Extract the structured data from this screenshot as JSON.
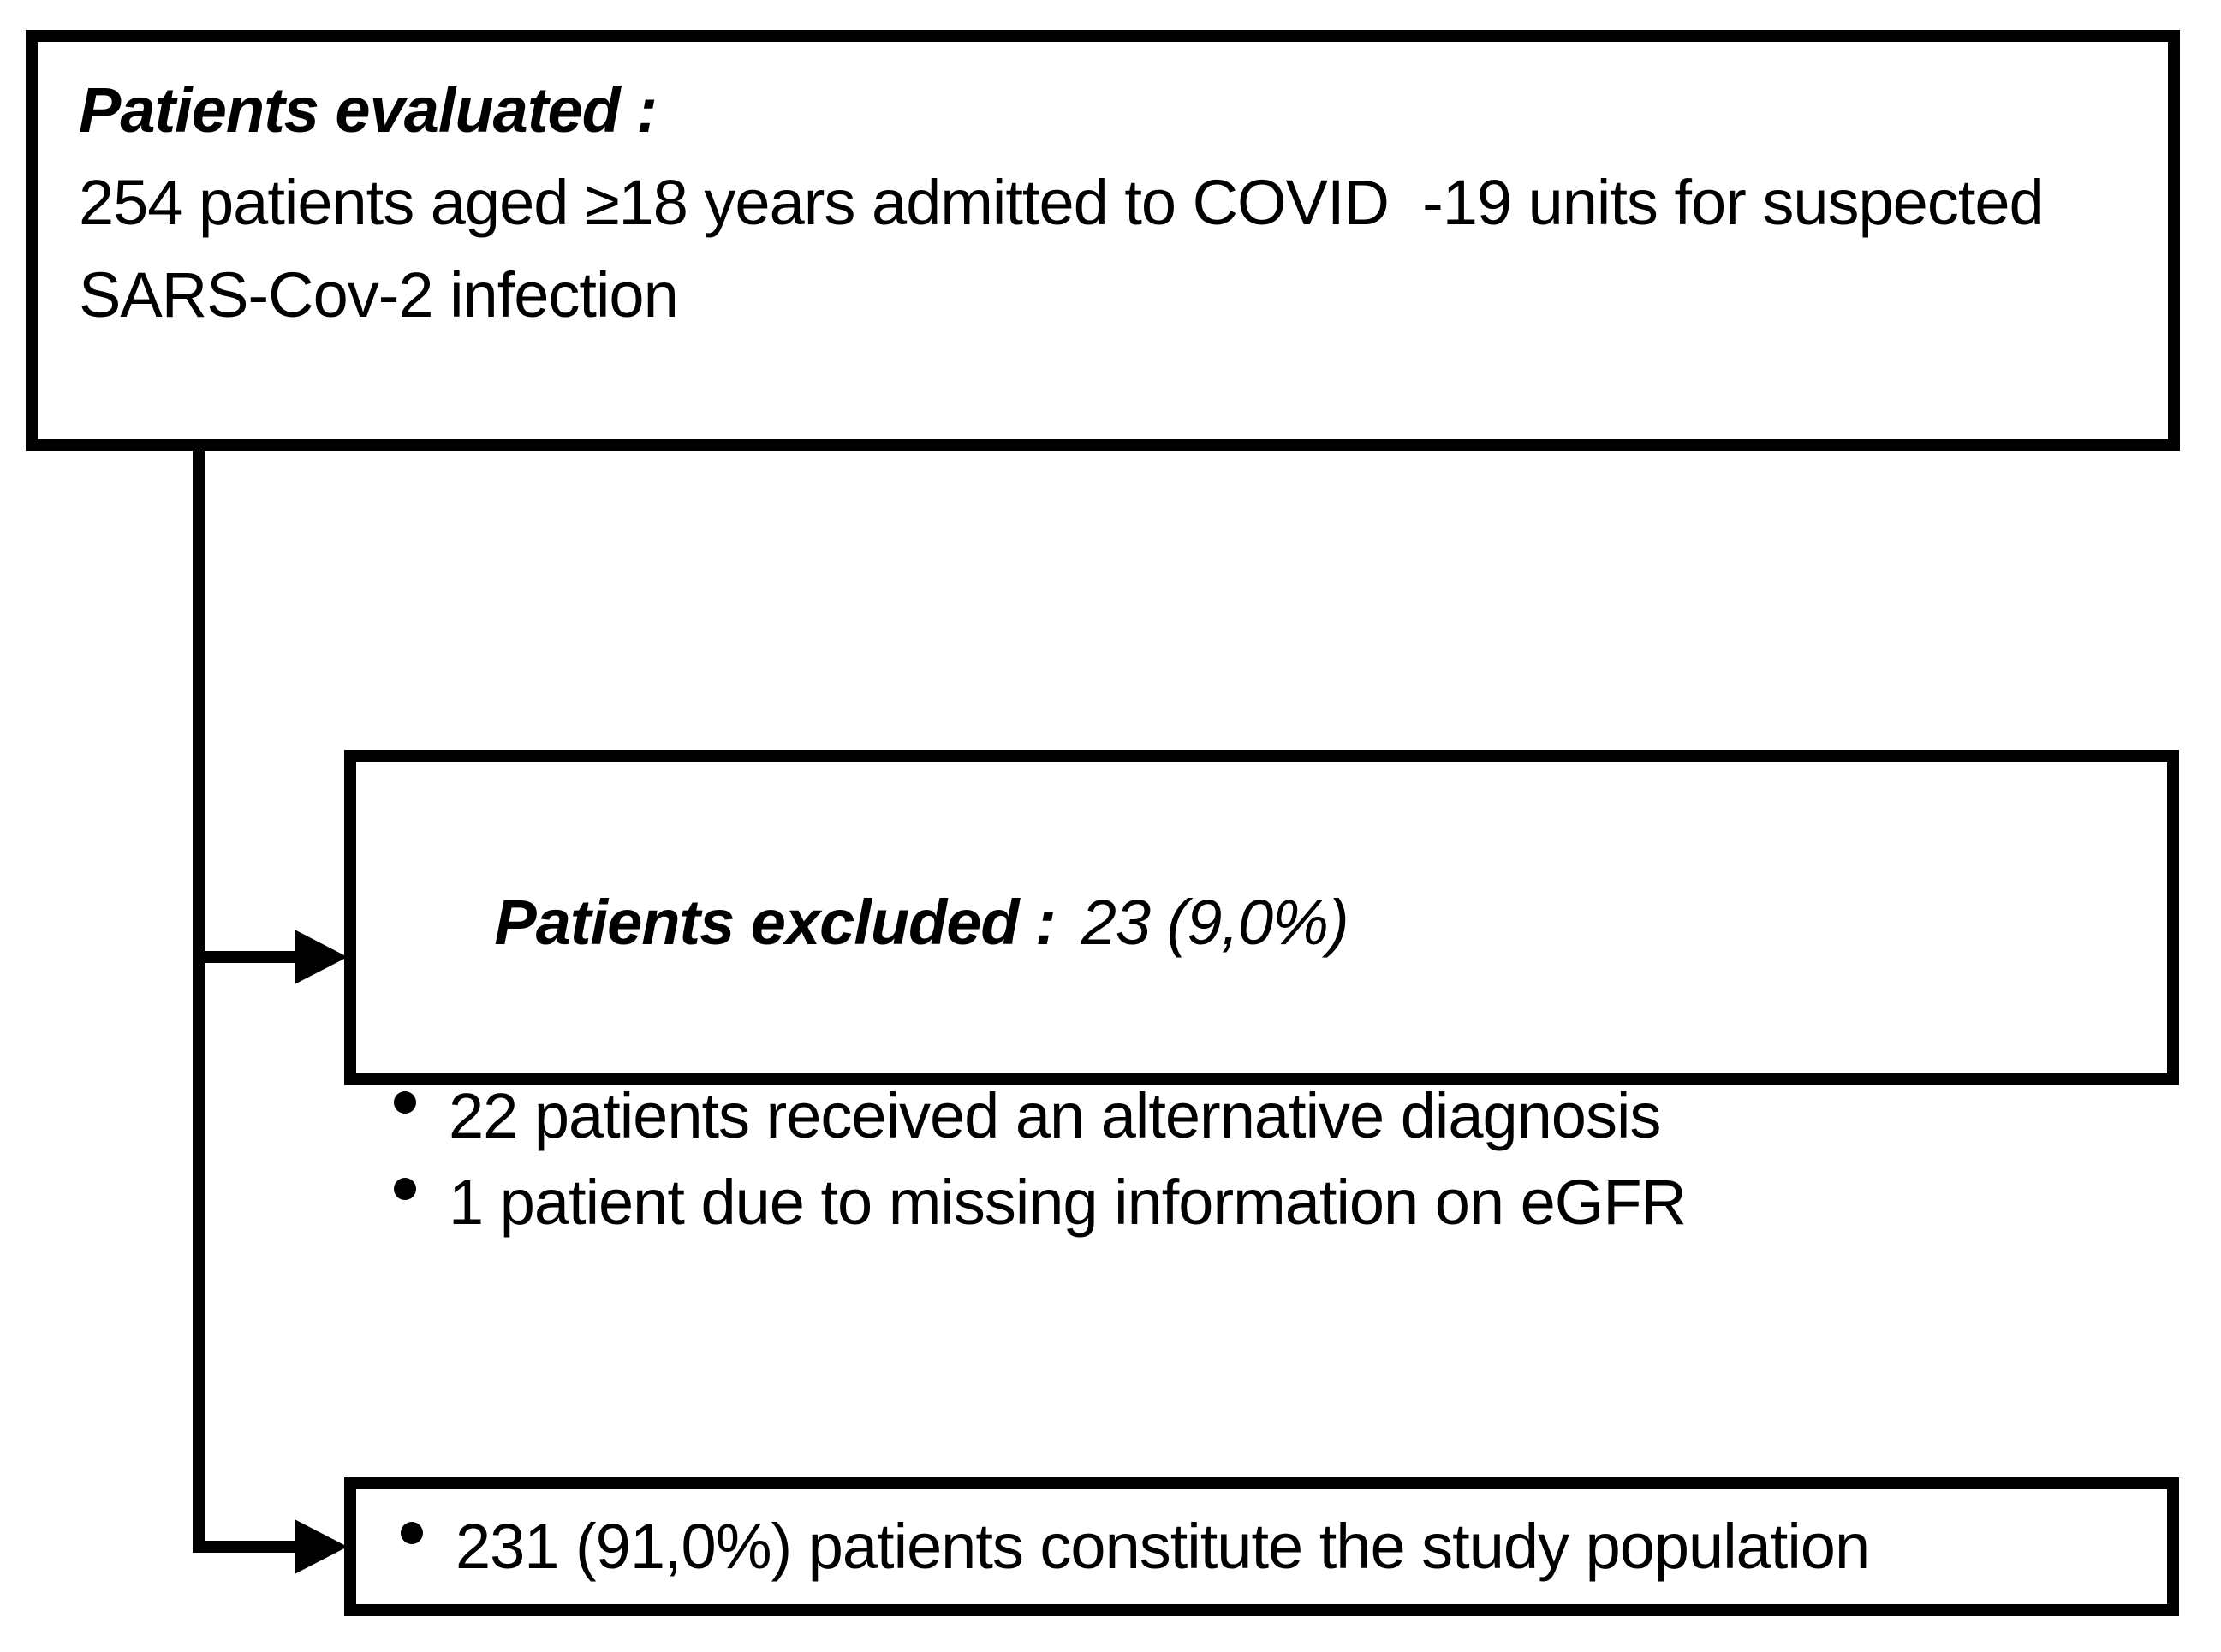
{
  "evaluated_box": {
    "title": "Patients evaluated :",
    "line1": "254 patients aged ≥18 years admitted to COVID  -19 units for suspected",
    "line2": "SARS-Cov-2 infection"
  },
  "excluded_box": {
    "title": "Patients excluded :",
    "count": "23 (9,0%)",
    "bullets": [
      "22 patients received an alternative diagnosis",
      "1 patient due to missing information on eGFR"
    ]
  },
  "study_box": {
    "bullet": "231 (91,0%) patients constitute the study population"
  },
  "colors": {
    "border": "#000000",
    "text": "#000000",
    "background": "#ffffff"
  }
}
